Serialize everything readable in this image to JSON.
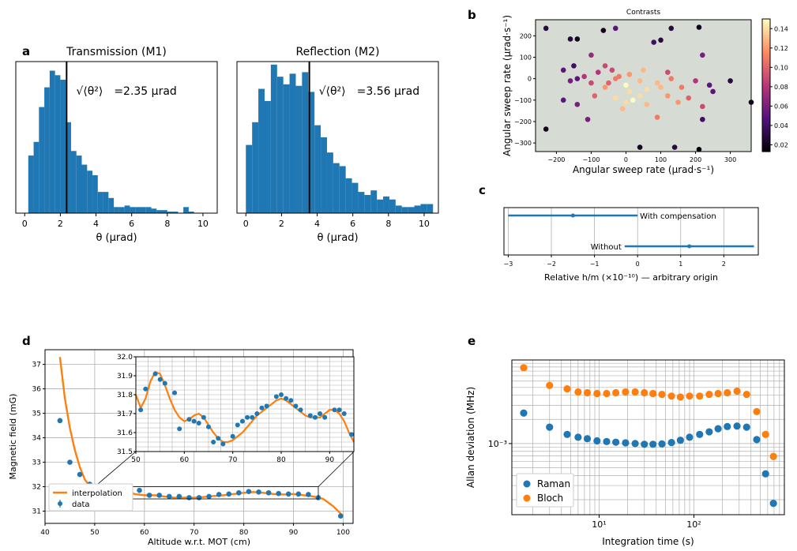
{
  "panel_labels": {
    "a": "a",
    "b": "b",
    "c": "c",
    "d": "d",
    "e": "e"
  },
  "colors": {
    "blue": "#1f77b4",
    "orange": "#ff7f0e",
    "black": "#000000",
    "grid": "#b0b0b0",
    "scatter_bg": "#d6dbd3"
  },
  "chart_data": [
    {
      "id": "hist_m1",
      "type": "bar",
      "title": "Transmission (M1)",
      "xlabel": "θ (μrad)",
      "xlim": [
        -0.5,
        10.8
      ],
      "xticks": [
        0,
        2,
        4,
        6,
        8,
        10
      ],
      "annotation_prefix": "√⟨θ²⟩",
      "annotation": "=2.35 μrad",
      "vline_x": 2.35,
      "bin_width": 0.3,
      "bin_starts": [
        0.2,
        0.5,
        0.8,
        1.1,
        1.4,
        1.7,
        2.0,
        2.3,
        2.6,
        2.9,
        3.2,
        3.5,
        3.8,
        4.1,
        4.4,
        4.7,
        5.0,
        5.3,
        5.6,
        5.9,
        6.2,
        6.5,
        6.8,
        7.1,
        7.4,
        7.7,
        8.0,
        8.3,
        8.6,
        8.9,
        9.2
      ],
      "values": [
        38,
        47,
        70,
        83,
        94,
        91,
        88,
        60,
        41,
        38,
        32,
        28,
        25,
        14,
        14,
        10,
        4,
        4,
        5,
        4,
        4,
        4,
        4,
        3,
        2,
        2,
        1,
        1,
        0,
        4,
        1
      ],
      "ylim": [
        0,
        100
      ]
    },
    {
      "id": "hist_m2",
      "type": "bar",
      "title": "Reflection (M2)",
      "xlabel": "θ (μrad)",
      "xlim": [
        -0.5,
        10.8
      ],
      "xticks": [
        0,
        2,
        4,
        6,
        8,
        10
      ],
      "annotation_prefix": "√⟨θ²⟩",
      "annotation": "=3.56 μrad",
      "vline_x": 3.56,
      "bin_width": 0.35,
      "bin_starts": [
        0.0,
        0.35,
        0.7,
        1.05,
        1.4,
        1.75,
        2.1,
        2.45,
        2.8,
        3.15,
        3.5,
        3.85,
        4.2,
        4.55,
        4.9,
        5.25,
        5.6,
        5.95,
        6.3,
        6.65,
        7.0,
        7.35,
        7.7,
        8.05,
        8.4,
        8.75,
        9.1,
        9.45,
        9.8,
        10.15
      ],
      "values": [
        45,
        60,
        82,
        74,
        98,
        90,
        85,
        92,
        84,
        93,
        80,
        58,
        50,
        40,
        33,
        31,
        23,
        20,
        14,
        12,
        15,
        9,
        11,
        9,
        5,
        4,
        4,
        5,
        6,
        6
      ],
      "ylim": [
        0,
        100
      ]
    },
    {
      "id": "contrast_scatter",
      "type": "scatter",
      "title": "Contrasts",
      "xlabel": "Angular sweep rate (μrad·s⁻¹)",
      "ylabel": "Angular sweep rate (μrad·s⁻¹)",
      "xlim": [
        -260,
        360
      ],
      "ylim": [
        -340,
        275
      ],
      "xticks": [
        -200,
        -100,
        0,
        100,
        200,
        300
      ],
      "yticks": [
        -300,
        -200,
        -100,
        0,
        100,
        200
      ],
      "colorbar": {
        "min": 0.013,
        "max": 0.15,
        "ticks": [
          0.02,
          0.04,
          0.06,
          0.08,
          0.1,
          0.12,
          0.14
        ],
        "tick_labels": [
          "0.02",
          "0.04",
          "0.06",
          "0.08",
          "0.10",
          "0.12",
          "0.14"
        ]
      },
      "points": [
        [
          -230,
          235,
          0.03
        ],
        [
          -230,
          -235,
          0.02
        ],
        [
          -160,
          185,
          0.03
        ],
        [
          -140,
          185,
          0.02
        ],
        [
          -30,
          235,
          0.05
        ],
        [
          130,
          235,
          0.03
        ],
        [
          -65,
          225,
          0.02
        ],
        [
          100,
          180,
          0.03
        ],
        [
          210,
          240,
          0.02
        ],
        [
          80,
          170,
          0.04
        ],
        [
          220,
          110,
          0.06
        ],
        [
          -180,
          40,
          0.05
        ],
        [
          -100,
          110,
          0.07
        ],
        [
          -140,
          0,
          0.05
        ],
        [
          -160,
          -10,
          0.06
        ],
        [
          -60,
          60,
          0.09
        ],
        [
          -80,
          30,
          0.08
        ],
        [
          -40,
          40,
          0.09
        ],
        [
          -20,
          10,
          0.11
        ],
        [
          10,
          20,
          0.12
        ],
        [
          50,
          40,
          0.13
        ],
        [
          120,
          30,
          0.09
        ],
        [
          130,
          0,
          0.11
        ],
        [
          90,
          -20,
          0.13
        ],
        [
          60,
          -50,
          0.14
        ],
        [
          40,
          -80,
          0.14
        ],
        [
          20,
          -100,
          0.15
        ],
        [
          0,
          -110,
          0.14
        ],
        [
          -30,
          -90,
          0.14
        ],
        [
          -60,
          -40,
          0.12
        ],
        [
          -100,
          -20,
          0.09
        ],
        [
          -120,
          10,
          0.08
        ],
        [
          -30,
          0,
          0.11
        ],
        [
          10,
          -60,
          0.14
        ],
        [
          60,
          -120,
          0.13
        ],
        [
          90,
          -180,
          0.11
        ],
        [
          150,
          -110,
          0.12
        ],
        [
          180,
          -90,
          0.1
        ],
        [
          220,
          -130,
          0.09
        ],
        [
          160,
          -40,
          0.11
        ],
        [
          200,
          -10,
          0.08
        ],
        [
          240,
          -30,
          0.05
        ],
        [
          300,
          -10,
          0.03
        ],
        [
          360,
          -110,
          0.02
        ],
        [
          -140,
          -120,
          0.06
        ],
        [
          -110,
          -190,
          0.06
        ],
        [
          40,
          -320,
          0.02
        ],
        [
          140,
          -320,
          0.03
        ],
        [
          210,
          -330,
          0.01
        ],
        [
          -180,
          -100,
          0.05
        ],
        [
          -50,
          -20,
          0.1
        ],
        [
          40,
          -10,
          0.13
        ],
        [
          100,
          -40,
          0.13
        ],
        [
          0,
          -30,
          0.15
        ],
        [
          -90,
          -80,
          0.1
        ],
        [
          220,
          -190,
          0.04
        ],
        [
          250,
          -60,
          0.05
        ],
        [
          -10,
          -140,
          0.13
        ],
        [
          120,
          -80,
          0.12
        ],
        [
          -150,
          60,
          0.04
        ]
      ]
    },
    {
      "id": "hm_comparison",
      "type": "errorbar",
      "xlabel": "Relative h/m (×10⁻¹⁰) — arbitrary origin",
      "xlim": [
        -3.1,
        2.8
      ],
      "xticks": [
        -3,
        -2,
        -1,
        0,
        1,
        2
      ],
      "rows": [
        {
          "label": "With compensation",
          "value": -1.5,
          "low": -3.0,
          "high": 0.0
        },
        {
          "label": "Without",
          "value": 1.2,
          "low": -0.3,
          "high": 2.7
        }
      ]
    },
    {
      "id": "magnetic_field",
      "type": "line",
      "xlabel": "Altitude w.r.t. MOT (cm)",
      "ylabel": "Magnetic field (mG)",
      "xlim": [
        40,
        102
      ],
      "ylim": [
        30.5,
        37.6
      ],
      "xticks": [
        40,
        50,
        60,
        70,
        80,
        90,
        100
      ],
      "yticks": [
        31,
        32,
        33,
        34,
        35,
        36,
        37
      ],
      "series": [
        {
          "name": "interpolation",
          "kind": "line",
          "x": [
            43,
            44,
            45,
            46,
            47,
            48,
            49,
            50,
            51,
            52,
            53,
            54,
            55,
            56,
            57,
            58,
            60,
            62,
            64,
            66,
            68,
            70,
            72,
            74,
            76,
            78,
            80,
            82,
            84,
            86,
            88,
            90,
            92,
            94,
            96,
            98,
            100
          ],
          "y": [
            37.3,
            35.6,
            34.4,
            33.5,
            32.8,
            32.3,
            32.0,
            31.8,
            31.75,
            31.8,
            31.85,
            31.9,
            31.88,
            31.85,
            31.8,
            31.7,
            31.65,
            31.65,
            31.6,
            31.55,
            31.55,
            31.55,
            31.58,
            31.62,
            31.65,
            31.7,
            31.75,
            31.78,
            31.75,
            31.7,
            31.68,
            31.7,
            31.65,
            31.6,
            31.5,
            31.2,
            30.8
          ]
        },
        {
          "name": "data",
          "kind": "points",
          "x": [
            43,
            45,
            47,
            49,
            51,
            53,
            55,
            57,
            59,
            61,
            63,
            65,
            67,
            69,
            71,
            73,
            75,
            77,
            79,
            81,
            83,
            85,
            87,
            89,
            91,
            93,
            95,
            99.5
          ],
          "y": [
            34.7,
            33.0,
            32.5,
            32.1,
            31.8,
            31.85,
            31.9,
            31.9,
            31.85,
            31.65,
            31.65,
            31.6,
            31.6,
            31.55,
            31.55,
            31.6,
            31.68,
            31.7,
            31.75,
            31.8,
            31.78,
            31.75,
            31.72,
            31.7,
            31.7,
            31.68,
            31.55,
            30.8
          ]
        }
      ],
      "legend": [
        "interpolation",
        "data"
      ],
      "legend_position": "lower-left",
      "inset": {
        "xlim": [
          50,
          95
        ],
        "ylim": [
          31.5,
          32.0
        ],
        "xticks": [
          50,
          60,
          70,
          80,
          90
        ],
        "yticks": [
          31.5,
          31.6,
          31.7,
          31.8,
          31.9,
          32.0
        ],
        "ytick_labels": [
          "31.5",
          "31.6",
          "31.7",
          "31.8",
          "31.9",
          "32.0"
        ],
        "line_x": [
          50,
          51,
          52,
          53,
          54,
          55,
          56,
          57,
          58,
          59,
          60,
          61,
          62,
          63,
          64,
          65,
          66,
          67,
          68,
          69,
          70,
          71,
          72,
          73,
          74,
          75,
          76,
          77,
          78,
          79,
          80,
          81,
          82,
          83,
          84,
          85,
          86,
          87,
          88,
          89,
          90,
          91,
          92,
          93,
          94,
          95
        ],
        "line_y": [
          31.8,
          31.73,
          31.78,
          31.87,
          31.92,
          31.91,
          31.85,
          31.78,
          31.72,
          31.68,
          31.66,
          31.67,
          31.69,
          31.7,
          31.68,
          31.64,
          31.6,
          31.57,
          31.55,
          31.55,
          31.56,
          31.58,
          31.6,
          31.63,
          31.66,
          31.69,
          31.71,
          31.73,
          31.75,
          31.77,
          31.78,
          31.77,
          31.75,
          31.73,
          31.71,
          31.69,
          31.68,
          31.68,
          31.68,
          31.7,
          31.72,
          31.72,
          31.7,
          31.66,
          31.6,
          31.55
        ],
        "points_x": [
          51,
          52,
          54,
          55,
          56,
          58,
          59,
          61,
          62,
          63,
          64,
          65,
          66,
          67,
          68,
          70,
          71,
          72,
          73,
          74,
          75,
          76,
          77,
          79,
          80,
          81,
          82,
          83,
          84,
          86,
          87,
          88,
          89,
          91,
          92,
          93,
          94.5
        ],
        "points_y": [
          31.72,
          31.83,
          31.91,
          31.88,
          31.86,
          31.81,
          31.62,
          31.67,
          31.66,
          31.65,
          31.68,
          31.63,
          31.55,
          31.57,
          31.54,
          31.58,
          31.64,
          31.66,
          31.68,
          31.68,
          31.7,
          31.73,
          31.74,
          31.79,
          31.8,
          31.78,
          31.77,
          31.74,
          31.72,
          31.69,
          31.68,
          31.7,
          31.68,
          31.72,
          31.72,
          31.7,
          31.59
        ]
      }
    },
    {
      "id": "allan_deviation",
      "type": "scatter",
      "xlabel": "Integration time (s)",
      "ylabel": "Allan deviation (MHz)",
      "log_x": true,
      "log_y": true,
      "xlim": [
        1.2,
        900
      ],
      "ylim": [
        0.00013,
        0.011
      ],
      "xticks_major": [
        10,
        100
      ],
      "xtick_labels": [
        "10¹",
        "10²"
      ],
      "ytick_major": [
        0.001
      ],
      "ytick_labels": [
        "10⁻³"
      ],
      "legend": [
        "Raman",
        "Bloch"
      ],
      "legend_position": "lower-left",
      "series": [
        {
          "name": "Raman",
          "x": [
            1.6,
            3.0,
            4.6,
            6.0,
            7.5,
            9.5,
            12,
            15,
            19,
            24,
            30,
            37,
            46,
            58,
            72,
            90,
            115,
            145,
            180,
            225,
            285,
            360,
            460,
            570,
            690
          ],
          "y": [
            0.0024,
            0.0016,
            0.0013,
            0.0012,
            0.00115,
            0.00108,
            0.00106,
            0.00104,
            0.00102,
            0.001,
            0.00098,
            0.00098,
            0.00099,
            0.00103,
            0.0011,
            0.0012,
            0.0013,
            0.0014,
            0.00153,
            0.00163,
            0.00165,
            0.0016,
            0.00112,
            0.00042,
            0.00018
          ]
        },
        {
          "name": "Bloch",
          "x": [
            1.6,
            3.0,
            4.6,
            6.0,
            7.5,
            9.5,
            12,
            15,
            19,
            24,
            30,
            37,
            46,
            58,
            72,
            90,
            115,
            145,
            180,
            225,
            285,
            360,
            460,
            570,
            690
          ],
          "y": [
            0.0088,
            0.0053,
            0.0048,
            0.0044,
            0.0043,
            0.0042,
            0.0042,
            0.0043,
            0.0044,
            0.0044,
            0.0043,
            0.0042,
            0.0041,
            0.0039,
            0.0038,
            0.0039,
            0.0039,
            0.0041,
            0.0042,
            0.0043,
            0.0045,
            0.0041,
            0.0025,
            0.0013,
            0.00069
          ]
        }
      ]
    }
  ]
}
